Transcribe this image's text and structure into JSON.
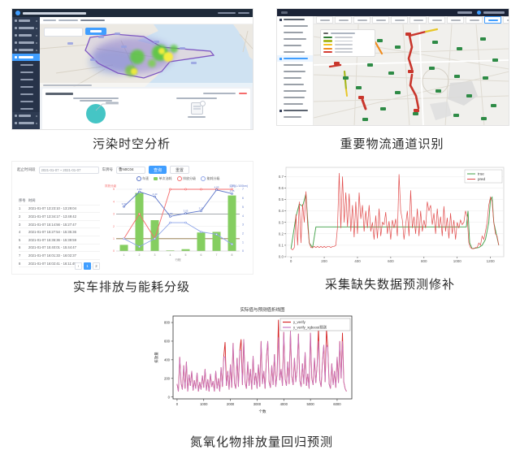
{
  "captions": {
    "c1": "污染时空分析",
    "c2": "重要物流通道识别",
    "c3": "实车排放与能耗分级",
    "c4": "采集缺失数据预测修补",
    "c5": "氮氧化物排放量回归预测"
  },
  "colors": {
    "accent": "#409eff",
    "header_navy": "#1e2a3a",
    "sidebar_navy": "#2e3b52",
    "pie_teal": "#45c5c5",
    "sea": "#cfe2f2",
    "land": "#ece9e3",
    "province_purple": "#7e57c2",
    "heat_green": "#55c23a",
    "heat_yellow": "#f5e93d",
    "bar_green": "#85ce61",
    "emission_red": "#f56c6c",
    "speed_blue": "#5a74c9",
    "energy_blue": "#8ea4e8",
    "true_green": "#3f9f46",
    "pred_red": "#e14b4b",
    "nox_red": "#d62728",
    "nox_magenta": "#c678c6",
    "route_colors": [
      "#2f7d33",
      "#a8b821",
      "#f2c21f",
      "#f08c1e",
      "#d43c33"
    ]
  },
  "app1": {
    "sidebar": [
      {
        "t": "top"
      },
      {
        "t": "top"
      },
      {
        "t": "top"
      },
      {
        "t": "top"
      },
      {
        "t": "top"
      },
      {
        "t": "sel"
      },
      {
        "t": "sub"
      },
      {
        "t": "sub"
      },
      {
        "t": "sub"
      },
      {
        "t": "sub"
      },
      {
        "t": "sub"
      },
      {
        "t": "sub"
      },
      {
        "t": "sub"
      },
      {
        "t": "top"
      },
      {
        "t": "top"
      }
    ]
  },
  "app2": {
    "sidebar": [
      {
        "t": "section"
      },
      {
        "t": "item"
      },
      {
        "t": "item"
      },
      {
        "t": "item"
      },
      {
        "t": "item"
      },
      {
        "t": "item"
      },
      {
        "t": "active"
      },
      {
        "t": "item"
      },
      {
        "t": "item"
      },
      {
        "t": "item"
      },
      {
        "t": "item"
      },
      {
        "t": "item"
      },
      {
        "t": "item"
      },
      {
        "t": "item"
      },
      {
        "t": "section"
      },
      {
        "t": "item"
      }
    ],
    "tabs": [
      {
        "active": false
      },
      {
        "active": false
      },
      {
        "active": false
      },
      {
        "active": false
      },
      {
        "active": false
      },
      {
        "active": false
      },
      {
        "active": false
      },
      {
        "active": false
      },
      {
        "active": false
      },
      {
        "active": true
      },
      {
        "active": false
      }
    ]
  },
  "panel3": {
    "filters": {
      "date_label": "起止时间段",
      "date_value": "2021-01-07 ~ 2021-01-07",
      "plate_label": "车牌号",
      "plate_value": "鲁N0C04",
      "search_label": "查询",
      "reset_label": "重置"
    },
    "table": {
      "headers": [
        "序号",
        "时间"
      ],
      "rows": [
        [
          "1",
          "2021-01-07 13:23:10 - 13:29:04"
        ],
        [
          "2",
          "2021-01-07 13:34:17 - 13:49:42"
        ],
        [
          "3",
          "2021-01-07 15:14:56 - 15:27:47"
        ],
        [
          "4",
          "2021-01-07 15:27:54 - 15:35:36"
        ],
        [
          "5",
          "2021-01-07 15:36:36 - 15:39:59"
        ],
        [
          "6",
          "2021-01-07 15:40:01 - 15:44:47"
        ],
        [
          "7",
          "2021-01-07 16:01:33 - 16:02:37"
        ],
        [
          "8",
          "2021-01-07 16:02:41 - 16:11:45"
        ]
      ],
      "pagination": [
        "‹",
        "1",
        "2"
      ],
      "active_page_index": 1
    }
  },
  "chart_data": [
    {
      "id": "emission-combo",
      "type": "bar",
      "categories": [
        1,
        2,
        3,
        4,
        5,
        6,
        7,
        8
      ],
      "xlabel": "行程",
      "axis_title_left": "排放分级",
      "axis_title_right": "油耗(L/100km)",
      "ylim": [
        0,
        5
      ],
      "yticks_left": [
        0,
        1,
        2,
        3,
        4,
        5
      ],
      "yticks_right": [
        0,
        1,
        2,
        3,
        4,
        5,
        6,
        7
      ],
      "legend_items": [
        {
          "label": "车速",
          "color": "#5a74c9",
          "shape": "circle"
        },
        {
          "label": "单次油耗",
          "color": "#85ce61",
          "shape": "square"
        },
        {
          "label": "排放分级",
          "color": "#f56c6c",
          "shape": "circle"
        },
        {
          "label": "能耗分级",
          "color": "#8ea4e8",
          "shape": "circle"
        }
      ],
      "series": [
        {
          "name": "单次油耗",
          "kind": "bar",
          "color": "#85ce61",
          "values": [
            0.5,
            4.7,
            2.5,
            0.05,
            0.15,
            1.5,
            1.55,
            4.5
          ]
        },
        {
          "name": "排放分级",
          "kind": "line",
          "color": "#f56c6c",
          "values": [
            1,
            3,
            1,
            5,
            5,
            5,
            5,
            5
          ]
        },
        {
          "name": "车速",
          "kind": "line",
          "color": "#5a74c9",
          "labeled": true,
          "values": [
            3.6,
            4.8,
            4.4,
            2.8,
            3.05,
            3.25,
            4.95,
            4.65
          ]
        },
        {
          "name": "能耗分级",
          "kind": "line",
          "color": "#8ea4e8",
          "values": [
            1.0,
            0.35,
            1.0,
            2.3,
            2.3,
            1.55,
            1.35,
            0.55
          ]
        }
      ],
      "hlines": [
        {
          "y": 1,
          "color": "#8a6d3b"
        },
        {
          "y": 3,
          "color": "#9aa0a6"
        }
      ]
    },
    {
      "id": "repair-pred",
      "type": "line",
      "legend": [
        "true",
        "pred"
      ],
      "legend_position": "top-right",
      "grid": true,
      "xticks": [
        0,
        200,
        400,
        600,
        800,
        1000,
        1200
      ],
      "yticks": [
        0.0,
        0.1,
        0.2,
        0.3,
        0.4,
        0.5,
        0.6,
        0.7
      ],
      "xlim": [
        -30,
        1280
      ],
      "ylim": [
        0,
        0.78
      ],
      "x_step": 10,
      "pred_y": [
        0.07,
        0.06,
        0.08,
        0.37,
        0.1,
        0.48,
        0.12,
        0.46,
        0.3,
        0.57,
        0.28,
        0.12,
        0.08,
        0.08,
        0.09,
        0.08,
        0.09,
        0.08,
        0.09,
        0.08,
        0.09,
        0.08,
        0.09,
        0.09,
        0.08,
        0.09,
        0.09,
        0.1,
        0.26,
        0.73,
        0.25,
        0.7,
        0.3,
        0.56,
        0.26,
        0.55,
        0.22,
        0.45,
        0.17,
        0.48,
        0.2,
        0.56,
        0.33,
        0.45,
        0.22,
        0.4,
        0.25,
        0.45,
        0.22,
        0.3,
        0.15,
        0.36,
        0.16,
        0.42,
        0.18,
        0.3,
        0.28,
        0.39,
        0.2,
        0.31,
        0.15,
        0.32,
        0.25,
        0.33,
        0.18,
        0.72,
        0.4,
        0.32,
        0.15,
        0.28,
        0.4,
        0.18,
        0.58,
        0.25,
        0.35,
        0.2,
        0.42,
        0.18,
        0.4,
        0.22,
        0.32,
        0.25,
        0.48,
        0.4,
        0.45,
        0.28,
        0.38,
        0.2,
        0.42,
        0.25,
        0.35,
        0.18,
        0.44,
        0.22,
        0.34,
        0.16,
        0.38,
        0.2,
        0.32,
        0.15,
        0.3,
        0.25,
        0.32,
        0.28,
        0.3,
        0.4,
        0.35,
        0.12,
        0.08,
        0.07,
        0.07,
        0.08,
        0.08,
        0.12,
        0.1,
        0.18,
        0.15,
        0.22,
        0.3,
        0.45,
        0.52,
        0.48,
        0.3,
        0.2,
        0.18,
        0.1
      ],
      "true_points": [
        [
          0,
          0.07
        ],
        [
          30,
          0.35
        ],
        [
          50,
          0.46
        ],
        [
          70,
          0.44
        ],
        [
          90,
          0.55
        ],
        [
          110,
          0.12
        ],
        [
          130,
          0.08
        ],
        [
          150,
          0.26
        ],
        [
          1040,
          0.26
        ],
        [
          1055,
          0.26
        ],
        [
          1065,
          0.4
        ],
        [
          1075,
          0.12
        ],
        [
          1090,
          0.07
        ],
        [
          1130,
          0.08
        ],
        [
          1150,
          0.1
        ],
        [
          1170,
          0.15
        ],
        [
          1190,
          0.3
        ],
        [
          1200,
          0.5
        ],
        [
          1210,
          0.52
        ],
        [
          1220,
          0.3
        ],
        [
          1250,
          0.1
        ]
      ]
    },
    {
      "id": "nox-regression",
      "type": "line",
      "title": "实际值与预测值折线图",
      "legend": [
        "y_verify",
        "y_verify_xgboost预测"
      ],
      "xlabel": "个数",
      "ylabel": "排放量",
      "xticks": [
        0,
        1000,
        2000,
        3000,
        4000,
        5000,
        6000
      ],
      "yticks": [
        0,
        200,
        400,
        600,
        800
      ],
      "xlim": [
        -150,
        6550
      ],
      "ylim": [
        -20,
        870
      ],
      "x_step": 50,
      "base_y": [
        140,
        60,
        430,
        150,
        80,
        340,
        90,
        380,
        60,
        240,
        120,
        280,
        70,
        180,
        90,
        260,
        60,
        160,
        80,
        230,
        100,
        300,
        70,
        190,
        60,
        250,
        110,
        170,
        60,
        280,
        90,
        200,
        60,
        320,
        110,
        430,
        430,
        120,
        280,
        80,
        350,
        100,
        580,
        150,
        90,
        420,
        110,
        500,
        500,
        130,
        620,
        160,
        90,
        380,
        120,
        300,
        80,
        440,
        130,
        260,
        90,
        350,
        110,
        600,
        140,
        280,
        90,
        420,
        600,
        160,
        100,
        340,
        130,
        460,
        110,
        250,
        640,
        180,
        300,
        120,
        700,
        200,
        120,
        380,
        140,
        710,
        220,
        130,
        420,
        160,
        300,
        680,
        180,
        110,
        360,
        140,
        480,
        120,
        250,
        90,
        690,
        200,
        130,
        420,
        150,
        340,
        600,
        180,
        110,
        380,
        560,
        160,
        560,
        530,
        140,
        90,
        360,
        130,
        280,
        100,
        430,
        150,
        600,
        200,
        600,
        160,
        90,
        60
      ],
      "red_spikes": [
        [
          1800,
          590
        ],
        [
          2400,
          620
        ],
        [
          3800,
          830
        ],
        [
          5300,
          745
        ],
        [
          5600,
          730
        ],
        [
          6200,
          690
        ]
      ]
    }
  ]
}
